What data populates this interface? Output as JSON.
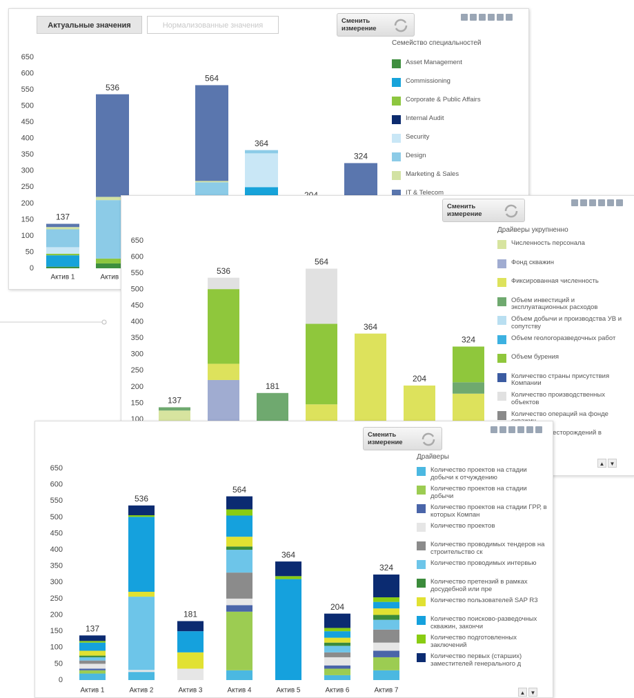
{
  "chart_data": [
    {
      "type": "bar",
      "stacked": true,
      "grid": false,
      "tabs": [
        "Актуальные значения",
        "Нормализованные значения"
      ],
      "button": "Сменить измерение",
      "legend_title": "Семейство специальностей",
      "categories": [
        "Актив 1",
        "Актив 2",
        "Актив 3",
        "Актив 4",
        "Актив 5",
        "Актив 6",
        "Актив 7"
      ],
      "totals": [
        137,
        536,
        181,
        564,
        364,
        204,
        324
      ],
      "ylim": [
        0,
        650
      ],
      "yticks": [
        0,
        50,
        100,
        150,
        200,
        250,
        300,
        350,
        400,
        450,
        500,
        550,
        600,
        650
      ],
      "series": [
        {
          "name": "Asset Management",
          "color": "#3f8f3f",
          "values": [
            5,
            15,
            20,
            0,
            0,
            20,
            40
          ]
        },
        {
          "name": "Commissioning",
          "color": "#17a3da",
          "values": [
            35,
            0,
            50,
            0,
            250,
            60,
            9
          ]
        },
        {
          "name": "Corporate & Public Affairs",
          "color": "#8dc63f",
          "values": [
            5,
            15,
            30,
            0,
            0,
            40,
            20
          ]
        },
        {
          "name": "Internal Audit",
          "color": "#0c2b6e",
          "values": [
            0,
            0,
            10,
            0,
            0,
            10,
            10
          ]
        },
        {
          "name": "Security",
          "color": "#c9e7f6",
          "values": [
            20,
            0,
            20,
            5,
            104,
            30,
            30
          ]
        },
        {
          "name": "Design",
          "color": "#8ccbe7",
          "values": [
            55,
            180,
            40,
            260,
            10,
            30,
            40
          ]
        },
        {
          "name": "Marketing & Sales",
          "color": "#d2e2a3",
          "values": [
            7,
            10,
            6,
            4,
            0,
            10,
            25
          ]
        },
        {
          "name": "IT & Telecom",
          "color": "#5a76ae",
          "values": [
            10,
            316,
            5,
            295,
            0,
            4,
            150
          ]
        }
      ]
    },
    {
      "type": "bar",
      "stacked": true,
      "grid": false,
      "button": "Сменить измерение",
      "legend_title": "Драйверы укрупненно",
      "categories": [
        "Актив 1",
        "Актив 2",
        "Актив 3",
        "Актив 4",
        "Актив 5",
        "Актив 6",
        "Актив 7"
      ],
      "totals": [
        137,
        536,
        181,
        564,
        364,
        204,
        324
      ],
      "ylim": [
        0,
        650
      ],
      "yticks": [
        0,
        50,
        100,
        150,
        200,
        250,
        300,
        350,
        400,
        450,
        500,
        550,
        600,
        650
      ],
      "series": [
        {
          "name": "Численность персонала",
          "color": "#d7e49f",
          "values": [
            127,
            0,
            0,
            0,
            0,
            10,
            54
          ]
        },
        {
          "name": "Фонд скважин",
          "color": "#a0acd1",
          "values": [
            0,
            221,
            0,
            64,
            0,
            0,
            0
          ]
        },
        {
          "name": "Фиксированная численность",
          "color": "#dde25c",
          "values": [
            0,
            50,
            41,
            82,
            364,
            194,
            125
          ]
        },
        {
          "name": "Объем инвестиций и эксплуатационных расходов",
          "color": "#6fa96f",
          "values": [
            10,
            0,
            140,
            0,
            0,
            0,
            35
          ]
        },
        {
          "name": "Объем добычи и производства УВ и сопутству",
          "color": "#b9dff1",
          "values": [
            0,
            0,
            0,
            0,
            0,
            0,
            0
          ]
        },
        {
          "name": "Объем геологоразведочных работ",
          "color": "#3cb1e1",
          "values": [
            0,
            0,
            0,
            0,
            0,
            0,
            0
          ]
        },
        {
          "name": "Объем бурения",
          "color": "#8fc73c",
          "values": [
            0,
            230,
            0,
            248,
            0,
            0,
            110
          ]
        },
        {
          "name": "Количество страны присутствия Компании",
          "color": "#3b5ba1",
          "values": [
            0,
            0,
            0,
            0,
            0,
            0,
            0
          ]
        },
        {
          "name": "Количество производственных объектов",
          "color": "#e1e1e1",
          "values": [
            0,
            35,
            0,
            170,
            0,
            0,
            0
          ]
        },
        {
          "name": "Количество операций на фонде скважин",
          "color": "#8a8a8a",
          "values": [
            0,
            0,
            0,
            0,
            0,
            0,
            0
          ]
        },
        {
          "name": "Количество месторождений в разработке",
          "color": "#2e7d32",
          "values": [
            0,
            0,
            0,
            0,
            0,
            0,
            0
          ]
        }
      ]
    },
    {
      "type": "bar",
      "stacked": true,
      "grid": false,
      "button": "Сменить измерение",
      "legend_title": "Драйверы",
      "categories": [
        "Актив 1",
        "Актив 2",
        "Актив 3",
        "Актив 4",
        "Актив 5",
        "Актив 6",
        "Актив 7"
      ],
      "totals": [
        137,
        536,
        181,
        564,
        364,
        204,
        324
      ],
      "ylim": [
        0,
        650
      ],
      "yticks": [
        0,
        50,
        100,
        150,
        200,
        250,
        300,
        350,
        400,
        450,
        500,
        550,
        600,
        650
      ],
      "series": [
        {
          "name": "Количество проектов на стадии добычи к отчуждению",
          "color": "#4bb8e1",
          "values": [
            20,
            25,
            0,
            30,
            0,
            15,
            30
          ]
        },
        {
          "name": "Количество проектов на стадии добычи",
          "color": "#9ccc52",
          "values": [
            10,
            0,
            0,
            180,
            0,
            20,
            40
          ]
        },
        {
          "name": "Количество проектов на стадии ГРР, в которых Компан",
          "color": "#4a65a9",
          "values": [
            5,
            0,
            0,
            20,
            0,
            10,
            20
          ]
        },
        {
          "name": "Количество проектов",
          "color": "#e6e6e6",
          "values": [
            15,
            6,
            35,
            20,
            0,
            25,
            25
          ]
        },
        {
          "name": "Количество проводимых тендеров на строительство ск",
          "color": "#8b8b8b",
          "values": [
            10,
            0,
            0,
            80,
            0,
            15,
            40
          ]
        },
        {
          "name": "Количество проводимых интервью",
          "color": "#6dc5e9",
          "values": [
            10,
            225,
            0,
            70,
            0,
            20,
            30
          ]
        },
        {
          "name": "Количество претензий в рамках досудебной или пре",
          "color": "#3b8b3b",
          "values": [
            5,
            0,
            0,
            10,
            0,
            10,
            15
          ]
        },
        {
          "name": "Количество пользователей SAP R3",
          "color": "#e1e132",
          "values": [
            15,
            15,
            50,
            30,
            0,
            15,
            20
          ]
        },
        {
          "name": "Количество поисково-разведочных скважин, закончи",
          "color": "#15a1dd",
          "values": [
            25,
            230,
            65,
            65,
            310,
            20,
            20
          ]
        },
        {
          "name": "Количество подготовленных заключений",
          "color": "#89cc12",
          "values": [
            5,
            5,
            0,
            19,
            9,
            10,
            14
          ]
        },
        {
          "name": "Количество первых (старших) заместителей генерального д",
          "color": "#0b2b71",
          "values": [
            17,
            30,
            31,
            40,
            45,
            44,
            70
          ]
        }
      ]
    }
  ]
}
